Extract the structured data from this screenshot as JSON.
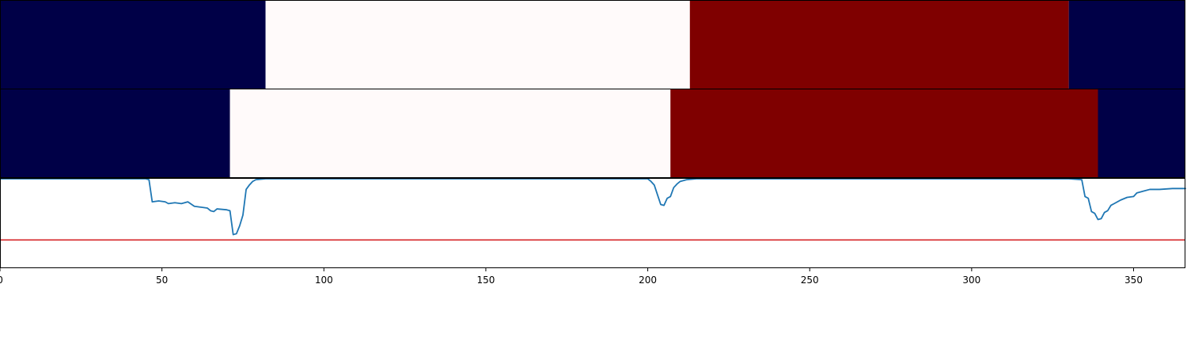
{
  "chart_data": {
    "type": "line",
    "title": "",
    "xlabel": "",
    "ylabel": "",
    "xlim": [
      0,
      366
    ],
    "ylim": [
      0,
      1
    ],
    "grid": false,
    "x_ticks": [
      0,
      50,
      100,
      150,
      200,
      250,
      300,
      350
    ],
    "x_tick_labels": [
      "0",
      "50",
      "100",
      "150",
      "200",
      "250",
      "300",
      "350"
    ],
    "colors": {
      "blue_band": "#000047",
      "white_band": "#fffafa",
      "red_band": "#7f0000",
      "line": "#1f77b4",
      "threshold": "#d62728",
      "frame": "#000000"
    },
    "band_rows": [
      {
        "segments": [
          {
            "start": 0,
            "end": 82,
            "color_key": "blue_band"
          },
          {
            "start": 82,
            "end": 213,
            "color_key": "white_band"
          },
          {
            "start": 213,
            "end": 330,
            "color_key": "red_band"
          },
          {
            "start": 330,
            "end": 366,
            "color_key": "blue_band"
          }
        ]
      },
      {
        "segments": [
          {
            "start": 0,
            "end": 71,
            "color_key": "blue_band"
          },
          {
            "start": 71,
            "end": 207,
            "color_key": "white_band"
          },
          {
            "start": 207,
            "end": 339,
            "color_key": "red_band"
          },
          {
            "start": 339,
            "end": 366,
            "color_key": "blue_band"
          }
        ]
      }
    ],
    "threshold": 0.31,
    "series": [
      {
        "values": [
          [
            0,
            1.0
          ],
          [
            20,
            1.0
          ],
          [
            45,
            1.0
          ],
          [
            46,
            0.99
          ],
          [
            47,
            0.74
          ],
          [
            49,
            0.75
          ],
          [
            51,
            0.74
          ],
          [
            52,
            0.72
          ],
          [
            54,
            0.73
          ],
          [
            56,
            0.72
          ],
          [
            58,
            0.74
          ],
          [
            60,
            0.69
          ],
          [
            62,
            0.68
          ],
          [
            64,
            0.67
          ],
          [
            65,
            0.64
          ],
          [
            66,
            0.63
          ],
          [
            67,
            0.66
          ],
          [
            70,
            0.65
          ],
          [
            71,
            0.64
          ],
          [
            72,
            0.37
          ],
          [
            73,
            0.38
          ],
          [
            74,
            0.47
          ],
          [
            75,
            0.59
          ],
          [
            76,
            0.88
          ],
          [
            77,
            0.93
          ],
          [
            78,
            0.97
          ],
          [
            79,
            0.99
          ],
          [
            82,
            1.0
          ],
          [
            200,
            1.0
          ],
          [
            201,
            0.97
          ],
          [
            202,
            0.93
          ],
          [
            203,
            0.82
          ],
          [
            204,
            0.71
          ],
          [
            205,
            0.7
          ],
          [
            206,
            0.78
          ],
          [
            207,
            0.8
          ],
          [
            208,
            0.9
          ],
          [
            209,
            0.94
          ],
          [
            210,
            0.97
          ],
          [
            212,
            0.99
          ],
          [
            215,
            1.0
          ],
          [
            330,
            1.0
          ],
          [
            334,
            0.99
          ],
          [
            335,
            0.8
          ],
          [
            336,
            0.78
          ],
          [
            337,
            0.63
          ],
          [
            338,
            0.61
          ],
          [
            339,
            0.54
          ],
          [
            340,
            0.55
          ],
          [
            341,
            0.62
          ],
          [
            342,
            0.64
          ],
          [
            343,
            0.7
          ],
          [
            344,
            0.72
          ],
          [
            346,
            0.76
          ],
          [
            348,
            0.79
          ],
          [
            350,
            0.8
          ],
          [
            351,
            0.84
          ],
          [
            353,
            0.86
          ],
          [
            355,
            0.88
          ],
          [
            358,
            0.88
          ],
          [
            362,
            0.89
          ],
          [
            366,
            0.89
          ]
        ]
      }
    ]
  }
}
